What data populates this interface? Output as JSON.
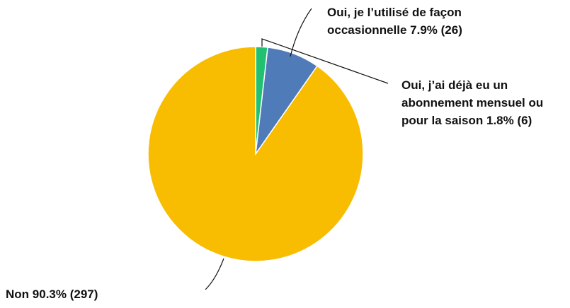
{
  "chart_data": {
    "type": "pie",
    "categories": [
      "Oui, j’ai déjà eu un abonnement mensuel ou pour la saison",
      "Oui, je l’utilisé de façon occasionnelle",
      "Non"
    ],
    "values": [
      1.8,
      7.9,
      90.3
    ],
    "value_labels": [
      "1.8% (6)",
      "7.9% (26)",
      "90.3% (297)"
    ],
    "colors": [
      "#22c172",
      "#4f7bb9",
      "#f8bd00"
    ]
  }
}
